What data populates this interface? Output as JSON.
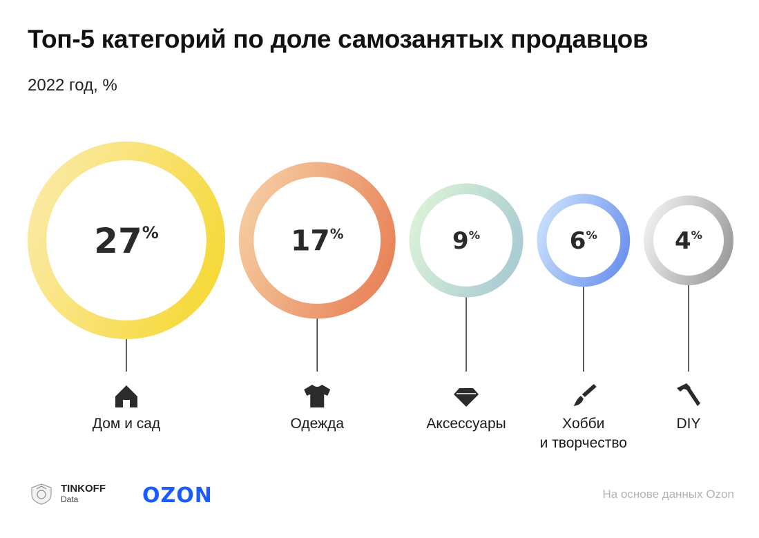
{
  "title": "Топ-5 категорий по доле самозанятых продавцов",
  "subtitle": "2022 год, %",
  "chart_data": {
    "type": "bubble-ring",
    "title": "Топ-5 категорий по доле самозанятых продавцов",
    "subtitle": "2022 год, %",
    "unit": "%",
    "categories": [
      "Дом и сад",
      "Одежда",
      "Аксессуары",
      "Хобби и творчество",
      "DIY"
    ],
    "values": [
      27,
      17,
      9,
      6,
      4
    ],
    "items": [
      {
        "label_lines": [
          "Дом и сад"
        ],
        "value": 27,
        "value_text": "27",
        "icon": "house-icon",
        "color_start": "#fbe9a0",
        "color_end": "#f6d93a"
      },
      {
        "label_lines": [
          "Одежда"
        ],
        "value": 17,
        "value_text": "17",
        "icon": "tshirt-icon",
        "color_start": "#f5c99e",
        "color_end": "#e9845a"
      },
      {
        "label_lines": [
          "Аксессуары"
        ],
        "value": 9,
        "value_text": "9",
        "icon": "diamond-icon",
        "color_start": "#d9f1d6",
        "color_end": "#a9ccd3"
      },
      {
        "label_lines": [
          "Хобби",
          "и творчество"
        ],
        "value": 6,
        "value_text": "6",
        "icon": "paintbrush-icon",
        "color_start": "#c4dcfb",
        "color_end": "#6f94ef"
      },
      {
        "label_lines": [
          "DIY"
        ],
        "value": 4,
        "value_text": "4",
        "icon": "hammer-icon",
        "color_start": "#ececec",
        "color_end": "#9e9e9e"
      }
    ]
  },
  "footer": {
    "tinkoff_name": "TINKOFF",
    "tinkoff_sub": "Data",
    "ozon": "OZON",
    "source": "На основе данных Ozon"
  }
}
